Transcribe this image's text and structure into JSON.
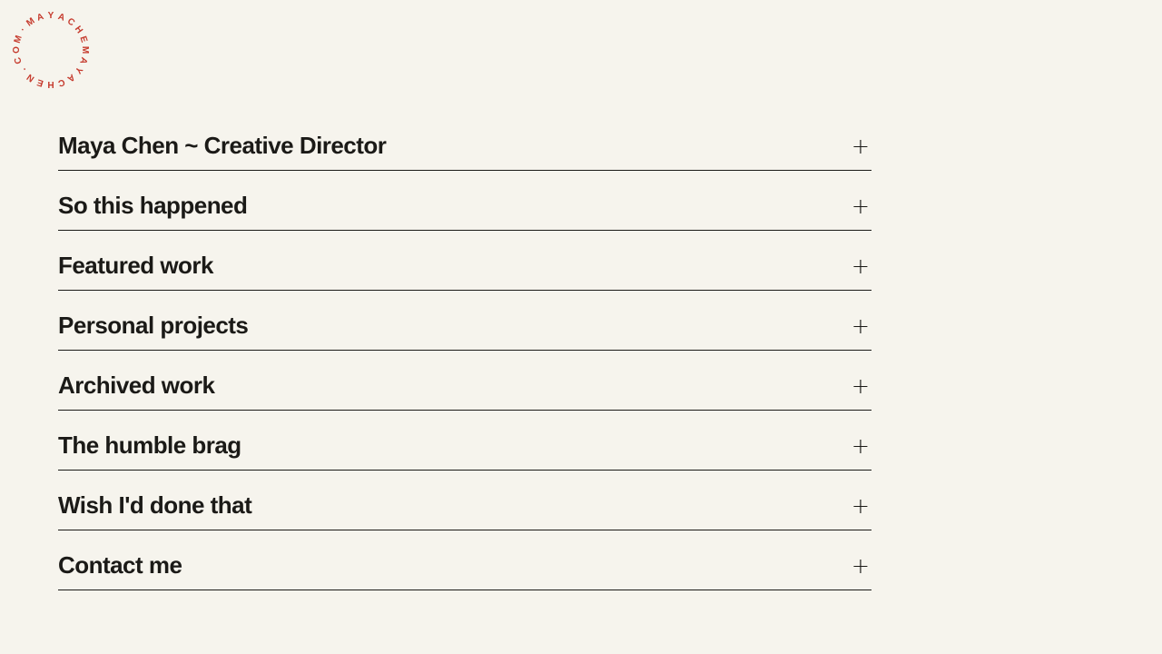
{
  "logo": {
    "text": "·MAYACHEMAYACHEN.COM",
    "color": "#c5392c"
  },
  "accordion": {
    "items": [
      {
        "label": "Maya Chen ~ Creative Director",
        "toggle": "+"
      },
      {
        "label": "So this happened",
        "toggle": "+"
      },
      {
        "label": "Featured work",
        "toggle": "+"
      },
      {
        "label": "Personal projects",
        "toggle": "+"
      },
      {
        "label": "Archived work",
        "toggle": "+"
      },
      {
        "label": "The humble brag",
        "toggle": "+"
      },
      {
        "label": "Wish I'd done that",
        "toggle": "+"
      },
      {
        "label": "Contact me",
        "toggle": "+"
      }
    ]
  },
  "colors": {
    "background": "#f6f4ed",
    "text": "#1b1a17",
    "divider": "#1b1a17",
    "accent": "#c5392c"
  }
}
